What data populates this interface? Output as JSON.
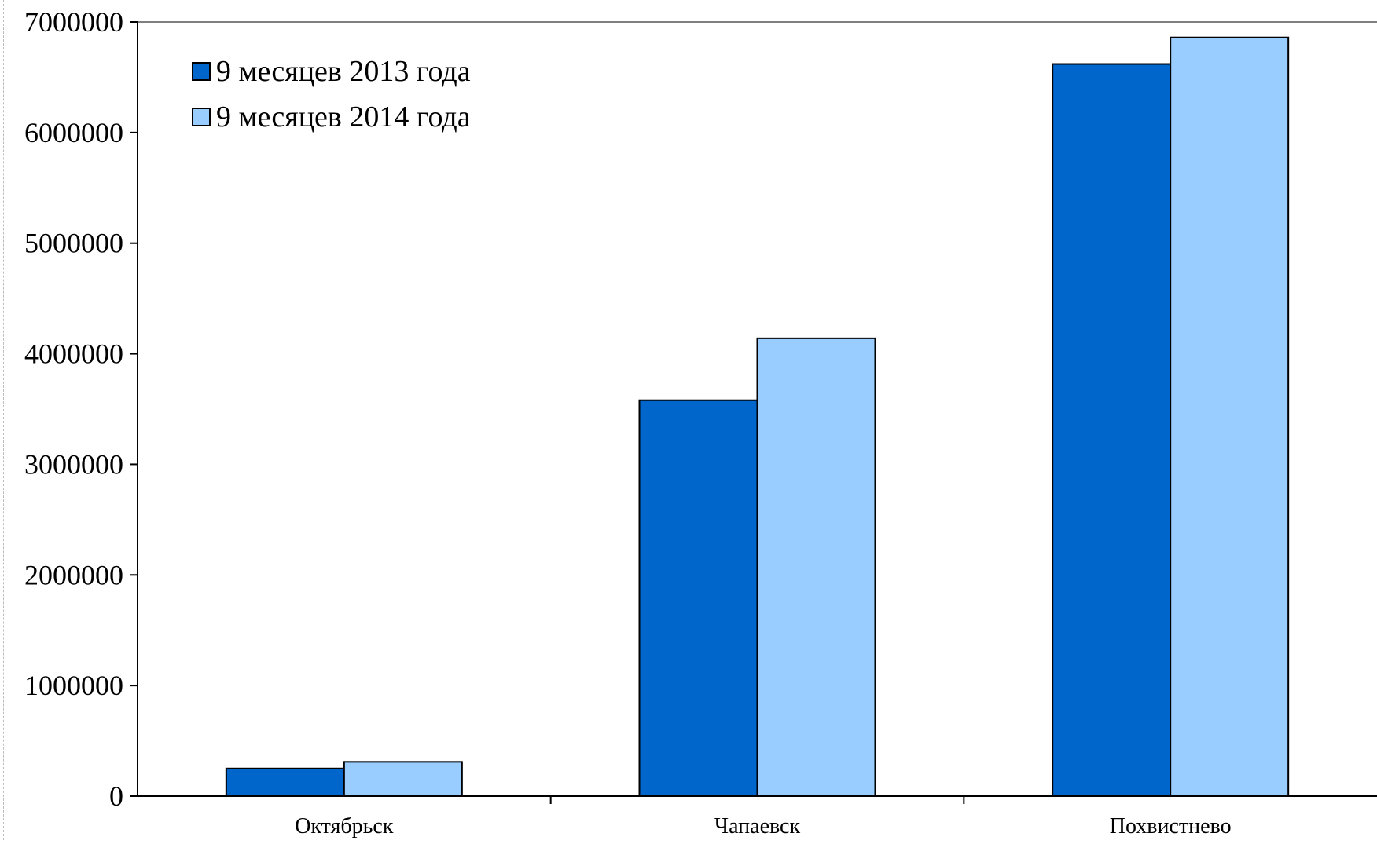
{
  "chart_data": {
    "type": "bar",
    "title": "",
    "xlabel": "",
    "ylabel": "",
    "categories": [
      "Октябрьск",
      "Чапаевск",
      "Похвистнево"
    ],
    "series": [
      {
        "name": "9 месяцев 2013 года",
        "color": "#0066CC",
        "values": [
          250000,
          3580000,
          6620000
        ]
      },
      {
        "name": "9 месяцев 2014 года",
        "color": "#99CCFF",
        "values": [
          310000,
          4140000,
          6860000
        ]
      }
    ],
    "ylim": [
      0,
      7000000
    ],
    "yticks": [
      "0",
      "1000000",
      "2000000",
      "3000000",
      "4000000",
      "5000000",
      "6000000",
      "7000000"
    ],
    "grid": false,
    "legend_position": "top-left"
  }
}
